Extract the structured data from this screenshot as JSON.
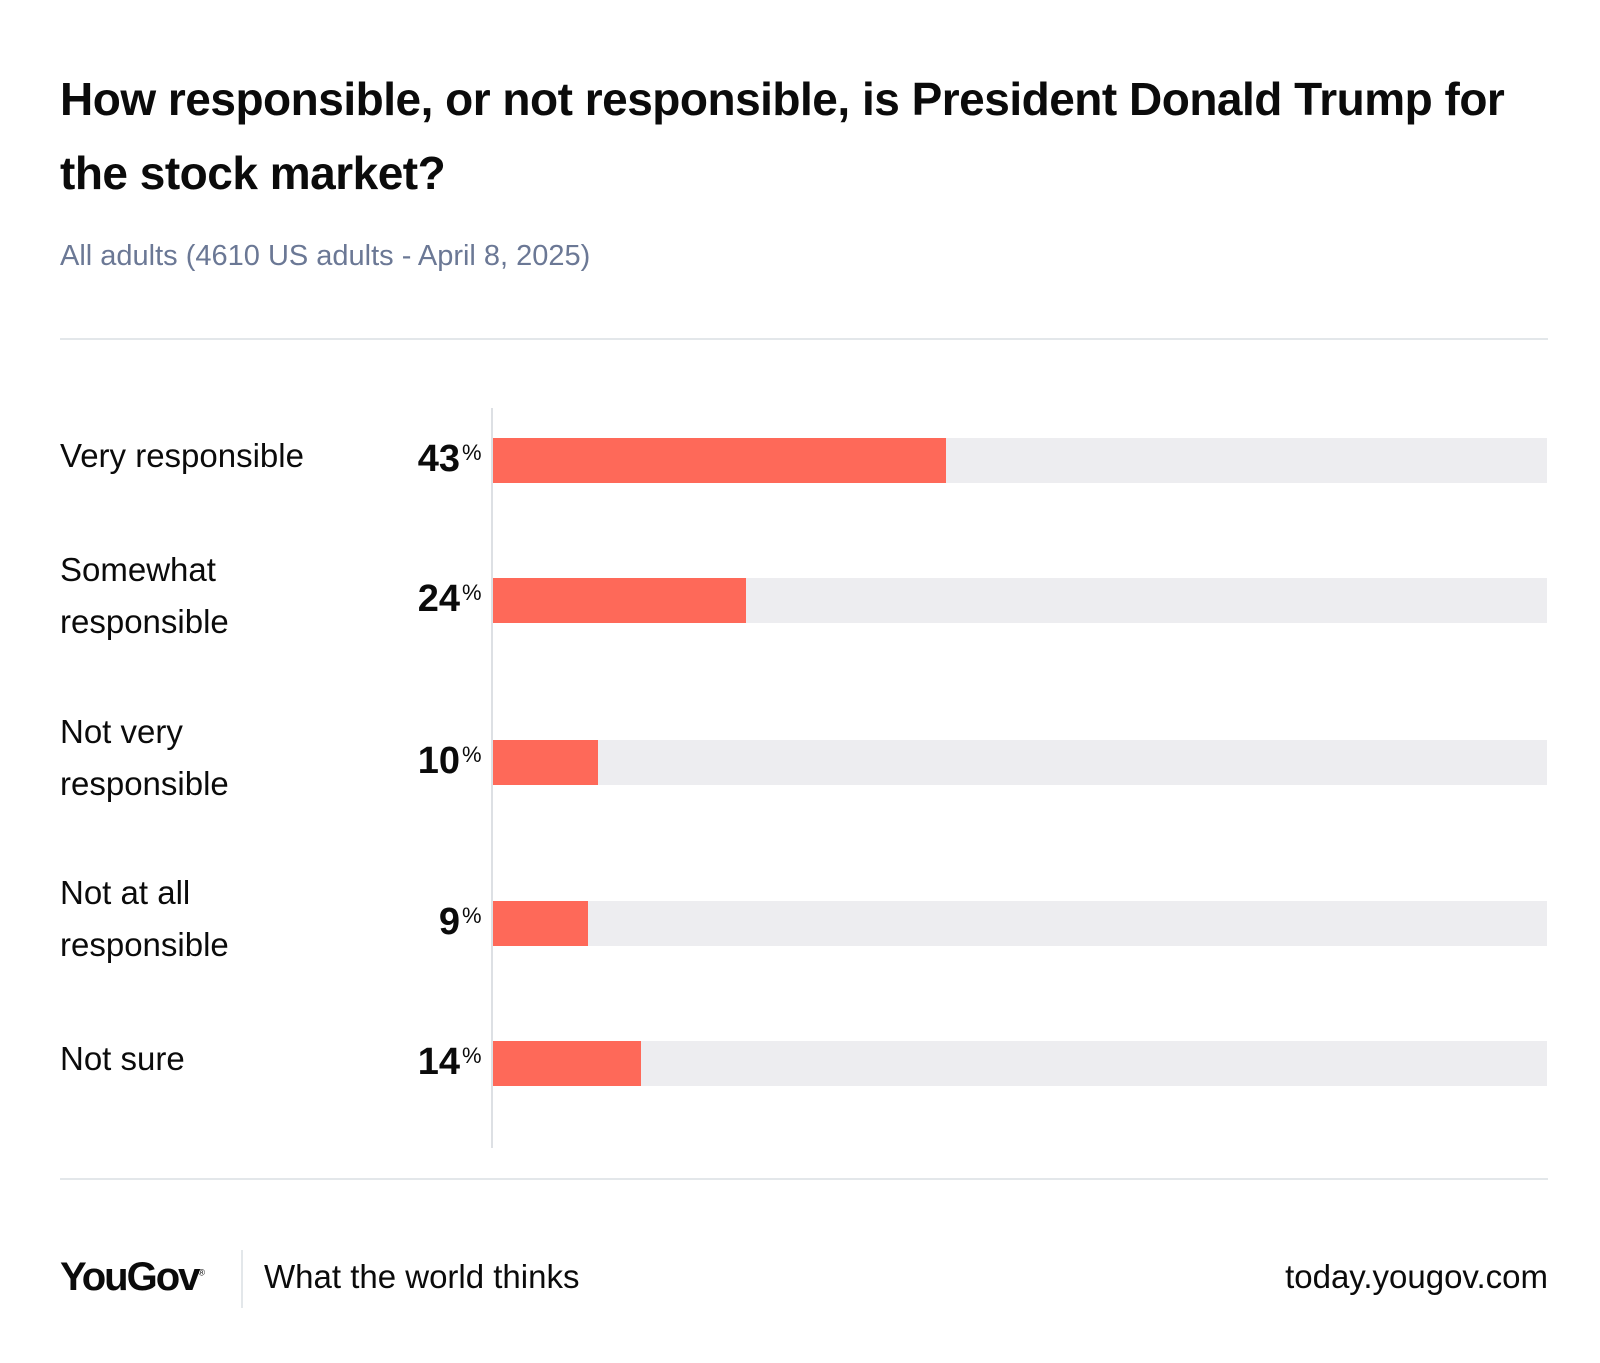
{
  "header": {
    "title": "How responsible, or not responsible, is President Donald Trump for the stock market?",
    "subtitle": "All adults (4610 US adults - April 8, 2025)"
  },
  "colors": {
    "bar": "#fe6959",
    "track": "#ededf0",
    "subtitle": "#6b7895"
  },
  "chart_data": {
    "type": "bar",
    "orientation": "horizontal",
    "title": "How responsible, or not responsible, is President Donald Trump for the stock market?",
    "subtitle": "All adults (4610 US adults - April 8, 2025)",
    "categories": [
      "Very responsible",
      "Somewhat responsible",
      "Not very responsible",
      "Not at all responsible",
      "Not sure"
    ],
    "values": [
      43,
      24,
      10,
      9,
      14
    ],
    "value_suffix": "%",
    "xlim": [
      0,
      100
    ],
    "xlabel": "",
    "ylabel": "",
    "grid": false,
    "legend": "none"
  },
  "rows": [
    {
      "label_lines": [
        "Very responsible"
      ],
      "value": "43",
      "pct": "%"
    },
    {
      "label_lines": [
        "Somewhat",
        "responsible"
      ],
      "value": "24",
      "pct": "%"
    },
    {
      "label_lines": [
        "Not very",
        "responsible"
      ],
      "value": "10",
      "pct": "%"
    },
    {
      "label_lines": [
        "Not at all",
        "responsible"
      ],
      "value": "9",
      "pct": "%"
    },
    {
      "label_lines": [
        "Not sure"
      ],
      "value": "14",
      "pct": "%"
    }
  ],
  "footer": {
    "logo": "YouGov",
    "logo_mark": "®",
    "tagline": "What the world thinks",
    "url": "today.yougov.com"
  }
}
